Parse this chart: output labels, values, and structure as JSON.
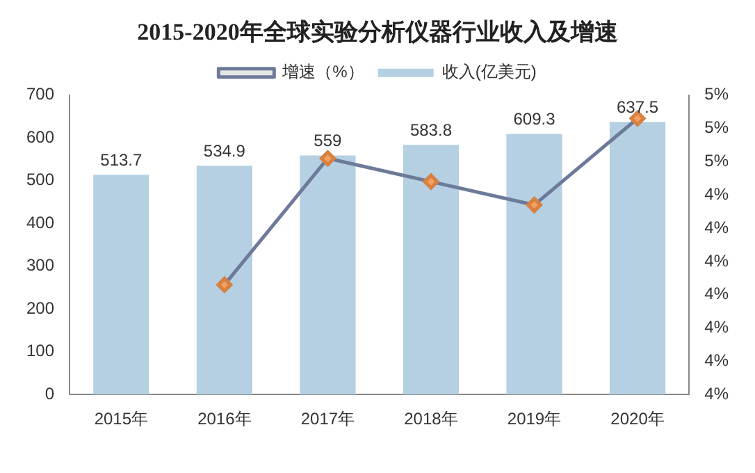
{
  "chart_data": {
    "type": "bar",
    "title": "2015-2020年全球实验分析仪器行业收入及增速",
    "categories": [
      "2015年",
      "2016年",
      "2017年",
      "2018年",
      "2019年",
      "2020年"
    ],
    "series": [
      {
        "name": "收入(亿美元)",
        "color": "#b4d0e2",
        "values": [
          513.7,
          534.9,
          559,
          583.8,
          609.3,
          637.5
        ]
      },
      {
        "name": "增速（%）",
        "type": "line",
        "axis": "y2",
        "color": "#6d7a99",
        "values": [
          null,
          4.13,
          4.51,
          4.44,
          4.37,
          4.63
        ]
      }
    ],
    "ylim": [
      0,
      700
    ],
    "yticks": [
      0,
      100,
      200,
      300,
      400,
      500,
      600,
      700
    ],
    "y2lim": [
      3.8,
      4.7
    ],
    "y2ticks": [
      {
        "value": 3.8,
        "label": "4%"
      },
      {
        "value": 3.9,
        "label": "4%"
      },
      {
        "value": 4.0,
        "label": "4%"
      },
      {
        "value": 4.1,
        "label": "4%"
      },
      {
        "value": 4.2,
        "label": "4%"
      },
      {
        "value": 4.3,
        "label": "4%"
      },
      {
        "value": 4.4,
        "label": "4%"
      },
      {
        "value": 4.5,
        "label": "5%"
      },
      {
        "value": 4.6,
        "label": "5%"
      },
      {
        "value": 4.7,
        "label": "5%"
      }
    ],
    "value_labels": [
      "513.7",
      "534.9",
      "559",
      "583.8",
      "609.3",
      "637.5"
    ],
    "marker": "diamond",
    "legend": "top",
    "grid": false
  }
}
